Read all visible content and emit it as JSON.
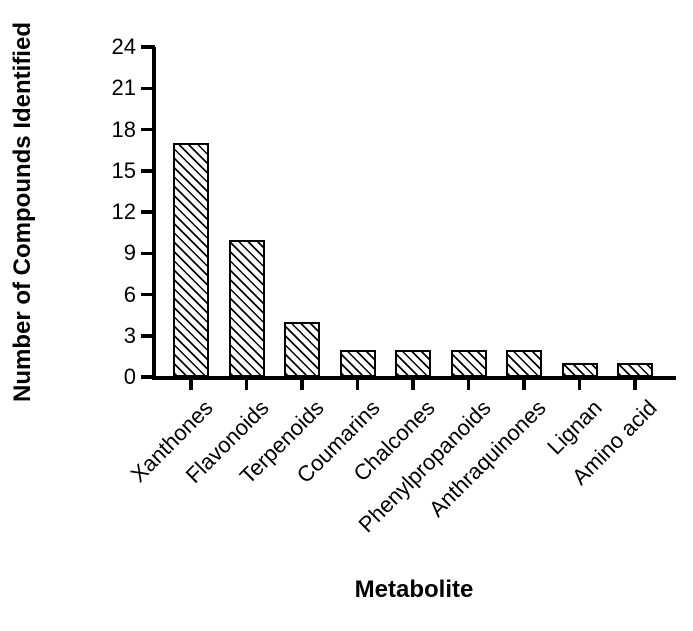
{
  "chart_data": {
    "type": "bar",
    "title": "",
    "categories": [
      "Xanthones",
      "Flavonoids",
      "Terpenoids",
      "Coumarins",
      "Chalcones",
      "Phenylpropanoids",
      "Anthraquinones",
      "Lignan",
      "Amino acid"
    ],
    "values": [
      17,
      10,
      4,
      2,
      2,
      2,
      2,
      1,
      1
    ],
    "xlabel": "Metabolite",
    "ylabel": "Number of Compounds Identified",
    "ylim": [
      0,
      24
    ],
    "yticks": [
      0,
      3,
      6,
      9,
      12,
      15,
      18,
      21,
      24
    ],
    "grid": false,
    "legend": false,
    "style": {
      "bar_fill": "#ffffff",
      "bar_hatch": "diagonal-backslash",
      "bar_border_color": "#000000",
      "axis_color": "#000000",
      "background": "#ffffff",
      "x_label_rotation_deg": 45
    }
  }
}
